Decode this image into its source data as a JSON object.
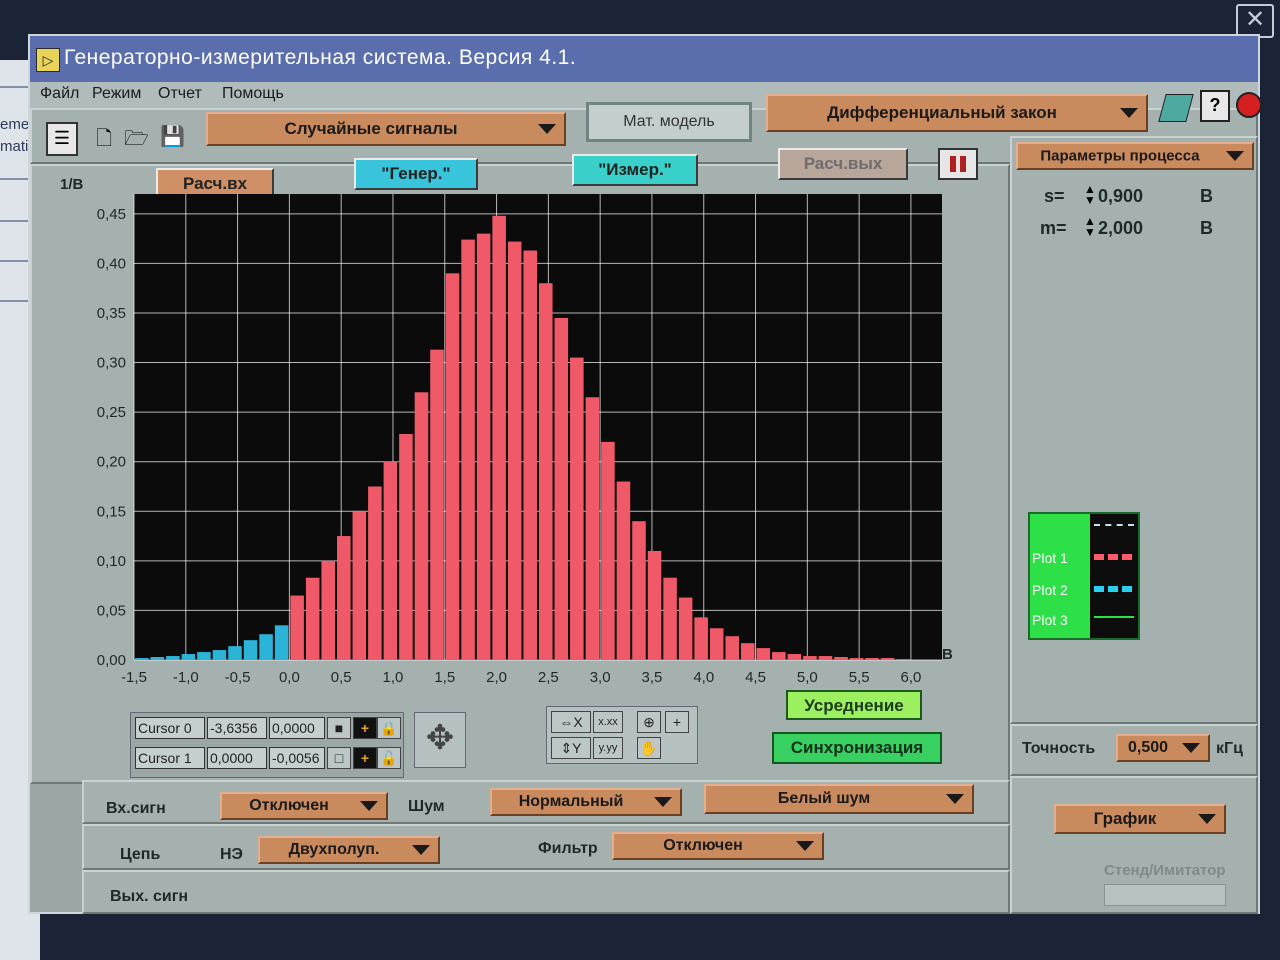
{
  "window": {
    "title": "Генераторно-измерительная система. Версия 4.1."
  },
  "menu": [
    "Файл",
    "Режим",
    "Отчет",
    "Помощь"
  ],
  "toolbar": {
    "signal_type": "Случайные сигналы",
    "model_button": "Мат. модель",
    "law": "Дифференциальный закон"
  },
  "actions": {
    "calc_in": "Расч.вх",
    "gen": "\"Генер.\"",
    "meas": "\"Измер.\"",
    "calc_out": "Расч.вых"
  },
  "colors": {
    "bar_main": "#f05a68",
    "bar_alt": "#2bb3d8",
    "grid": "#ffffff",
    "plot_bg": "#0b0b0b",
    "accent_cyan": "#33c3d8",
    "accent_green": "#5cd860"
  },
  "chart_data": {
    "type": "bar",
    "ylabel": "1/В",
    "xlabel": "В",
    "xlim": [
      -1.5,
      6.3
    ],
    "ylim": [
      0,
      0.47
    ],
    "bin_width": 0.15,
    "x_ticks": [
      "-1,5",
      "-1,0",
      "-0,5",
      "0,0",
      "0,5",
      "1,0",
      "1,5",
      "2,0",
      "2,5",
      "3,0",
      "3,5",
      "4,0",
      "4,5",
      "5,0",
      "5,5",
      "6,0"
    ],
    "y_ticks": [
      "0,00",
      "0,05",
      "0,10",
      "0,15",
      "0,20",
      "0,25",
      "0,30",
      "0,35",
      "0,40",
      "0,45"
    ],
    "series": [
      {
        "bins_start": [
          -1.5,
          -1.35,
          -1.2,
          -1.05,
          -0.9,
          -0.75,
          -0.6,
          -0.45,
          -0.3,
          -0.15
        ],
        "values": [
          0.002,
          0.003,
          0.004,
          0.006,
          0.008,
          0.01,
          0.014,
          0.02,
          0.026,
          0.035
        ]
      },
      {
        "bins_start": [
          0.0,
          0.15,
          0.3,
          0.45,
          0.6,
          0.75,
          0.9,
          1.05,
          1.2,
          1.35,
          1.5,
          1.65,
          1.8,
          1.95,
          2.1,
          2.25,
          2.4,
          2.55,
          2.7,
          2.85,
          3.0,
          3.15,
          3.3,
          3.45,
          3.6,
          3.75,
          3.9,
          4.05,
          4.2,
          4.35,
          4.5,
          4.65,
          4.8,
          4.95,
          5.1,
          5.25,
          5.4,
          5.55,
          5.7,
          5.85
        ],
        "values": [
          0.065,
          0.083,
          0.1,
          0.125,
          0.15,
          0.175,
          0.2,
          0.228,
          0.27,
          0.313,
          0.39,
          0.424,
          0.43,
          0.448,
          0.422,
          0.413,
          0.38,
          0.345,
          0.305,
          0.265,
          0.22,
          0.18,
          0.14,
          0.11,
          0.083,
          0.063,
          0.043,
          0.032,
          0.024,
          0.017,
          0.012,
          0.008,
          0.006,
          0.004,
          0.004,
          0.003,
          0.002,
          0.002,
          0.002,
          0.001
        ]
      }
    ]
  },
  "cursors": {
    "cursor0": {
      "label": "Cursor 0",
      "x": "-3,6356",
      "y": "0,0000"
    },
    "cursor1": {
      "label": "Cursor 1",
      "x": "0,0000",
      "y": "-0,0056"
    }
  },
  "graph_tools": {
    "x_fmt": "x.xx",
    "y_fmt": "y.yy"
  },
  "toggles": {
    "average": "Усреднение",
    "sync": "Синхронизация"
  },
  "params": {
    "title": "Параметры процесса",
    "s_label": "s=",
    "s_value": "0,900",
    "s_unit": "В",
    "m_label": "m=",
    "m_value": "2,000",
    "m_unit": "В"
  },
  "legend": [
    "Plot 1",
    "Plot 2",
    "Plot 3"
  ],
  "accuracy": {
    "label": "Точность",
    "value": "0,500",
    "unit": "кГц"
  },
  "bottom": {
    "input_label": "Вх.сигн",
    "input_value": "Отключен",
    "noise_label": "Шум",
    "noise_dist": "Нормальный",
    "noise_type": "Белый шум",
    "chain_label": "Цепь",
    "ne_label": "НЭ",
    "ne_value": "Двухполуп.",
    "filter_label": "Фильтр",
    "filter_value": "Отключен",
    "output_label": "Вых. сигн",
    "graph_select": "График",
    "stand_label": "Стенд/Имитатор"
  },
  "desktop": {
    "left_text_1": "eme",
    "left_text_2": "mati"
  }
}
